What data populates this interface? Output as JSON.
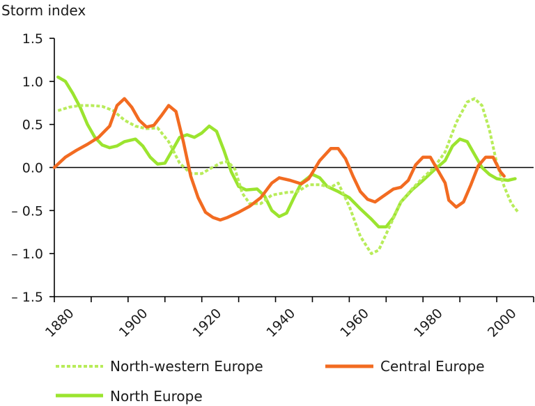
{
  "chart_data": {
    "type": "line",
    "title": "",
    "ylabel": "Storm index",
    "xlabel": "",
    "xlim": [
      1880,
      2010
    ],
    "ylim": [
      -1.5,
      1.5
    ],
    "x_ticks": [
      1880,
      1900,
      1920,
      1940,
      1960,
      1980,
      2000
    ],
    "x_tick_labels": [
      "1880",
      "1900",
      "1920",
      "1940",
      "1960",
      "1980",
      "2000"
    ],
    "y_ticks": [
      1.5,
      1.0,
      0.5,
      0.0,
      -0.5,
      -1.0,
      -1.5
    ],
    "y_tick_labels": [
      "1.5",
      "1.0",
      "0.5",
      "0.0",
      "– 0.5",
      "– 1.0",
      "– 1.5"
    ],
    "grid": false,
    "legend_position": "bottom",
    "series": [
      {
        "name": "North-western Europe",
        "color": "#b8ec5a",
        "style": "dashed",
        "points": [
          [
            1881,
            0.66
          ],
          [
            1884,
            0.7
          ],
          [
            1887,
            0.72
          ],
          [
            1890,
            0.72
          ],
          [
            1893,
            0.71
          ],
          [
            1896,
            0.66
          ],
          [
            1899,
            0.55
          ],
          [
            1902,
            0.48
          ],
          [
            1905,
            0.45
          ],
          [
            1908,
            0.46
          ],
          [
            1911,
            0.3
          ],
          [
            1914,
            0.05
          ],
          [
            1917,
            -0.07
          ],
          [
            1920,
            -0.07
          ],
          [
            1922,
            -0.02
          ],
          [
            1925,
            0.05
          ],
          [
            1927,
            0.07
          ],
          [
            1929,
            -0.02
          ],
          [
            1931,
            -0.3
          ],
          [
            1933,
            -0.42
          ],
          [
            1936,
            -0.42
          ],
          [
            1939,
            -0.32
          ],
          [
            1943,
            -0.29
          ],
          [
            1946,
            -0.28
          ],
          [
            1949,
            -0.2
          ],
          [
            1952,
            -0.2
          ],
          [
            1955,
            -0.23
          ],
          [
            1957,
            -0.18
          ],
          [
            1960,
            -0.45
          ],
          [
            1963,
            -0.8
          ],
          [
            1966,
            -1.0
          ],
          [
            1968,
            -0.96
          ],
          [
            1971,
            -0.68
          ],
          [
            1974,
            -0.4
          ],
          [
            1977,
            -0.25
          ],
          [
            1980,
            -0.12
          ],
          [
            1983,
            0.0
          ],
          [
            1986,
            0.18
          ],
          [
            1989,
            0.52
          ],
          [
            1992,
            0.76
          ],
          [
            1994,
            0.8
          ],
          [
            1996,
            0.72
          ],
          [
            1998,
            0.44
          ],
          [
            2000,
            0.05
          ],
          [
            2002,
            -0.22
          ],
          [
            2004,
            -0.42
          ],
          [
            2006,
            -0.53
          ]
        ]
      },
      {
        "name": "Central Europe",
        "color": "#f26b21",
        "style": "solid",
        "points": [
          [
            1880,
            0.0
          ],
          [
            1883,
            0.12
          ],
          [
            1886,
            0.2
          ],
          [
            1889,
            0.27
          ],
          [
            1892,
            0.35
          ],
          [
            1895,
            0.48
          ],
          [
            1897,
            0.72
          ],
          [
            1899,
            0.8
          ],
          [
            1901,
            0.7
          ],
          [
            1903,
            0.55
          ],
          [
            1905,
            0.47
          ],
          [
            1907,
            0.49
          ],
          [
            1909,
            0.6
          ],
          [
            1911,
            0.72
          ],
          [
            1913,
            0.65
          ],
          [
            1915,
            0.3
          ],
          [
            1917,
            -0.1
          ],
          [
            1919,
            -0.35
          ],
          [
            1921,
            -0.52
          ],
          [
            1923,
            -0.58
          ],
          [
            1925,
            -0.61
          ],
          [
            1927,
            -0.58
          ],
          [
            1930,
            -0.52
          ],
          [
            1933,
            -0.45
          ],
          [
            1936,
            -0.35
          ],
          [
            1939,
            -0.18
          ],
          [
            1941,
            -0.12
          ],
          [
            1944,
            -0.15
          ],
          [
            1947,
            -0.19
          ],
          [
            1949,
            -0.13
          ],
          [
            1952,
            0.08
          ],
          [
            1955,
            0.22
          ],
          [
            1957,
            0.22
          ],
          [
            1959,
            0.1
          ],
          [
            1961,
            -0.1
          ],
          [
            1963,
            -0.28
          ],
          [
            1965,
            -0.37
          ],
          [
            1967,
            -0.4
          ],
          [
            1969,
            -0.34
          ],
          [
            1972,
            -0.25
          ],
          [
            1974,
            -0.23
          ],
          [
            1976,
            -0.15
          ],
          [
            1978,
            0.03
          ],
          [
            1980,
            0.12
          ],
          [
            1982,
            0.12
          ],
          [
            1984,
            -0.03
          ],
          [
            1986,
            -0.18
          ],
          [
            1987,
            -0.38
          ],
          [
            1989,
            -0.46
          ],
          [
            1991,
            -0.4
          ],
          [
            1993,
            -0.2
          ],
          [
            1995,
            0.02
          ],
          [
            1997,
            0.12
          ],
          [
            1999,
            0.12
          ],
          [
            2001,
            -0.05
          ],
          [
            2002,
            -0.1
          ]
        ]
      },
      {
        "name": "North Europe",
        "color": "#9be42f",
        "style": "solid",
        "points": [
          [
            1881,
            1.05
          ],
          [
            1883,
            1.0
          ],
          [
            1885,
            0.86
          ],
          [
            1887,
            0.7
          ],
          [
            1889,
            0.5
          ],
          [
            1891,
            0.35
          ],
          [
            1893,
            0.26
          ],
          [
            1895,
            0.23
          ],
          [
            1897,
            0.25
          ],
          [
            1899,
            0.3
          ],
          [
            1902,
            0.33
          ],
          [
            1904,
            0.25
          ],
          [
            1906,
            0.12
          ],
          [
            1908,
            0.04
          ],
          [
            1910,
            0.05
          ],
          [
            1912,
            0.2
          ],
          [
            1914,
            0.35
          ],
          [
            1916,
            0.38
          ],
          [
            1918,
            0.35
          ],
          [
            1920,
            0.4
          ],
          [
            1922,
            0.48
          ],
          [
            1924,
            0.42
          ],
          [
            1926,
            0.2
          ],
          [
            1928,
            -0.05
          ],
          [
            1930,
            -0.22
          ],
          [
            1932,
            -0.26
          ],
          [
            1935,
            -0.25
          ],
          [
            1937,
            -0.33
          ],
          [
            1939,
            -0.5
          ],
          [
            1941,
            -0.57
          ],
          [
            1943,
            -0.53
          ],
          [
            1945,
            -0.35
          ],
          [
            1947,
            -0.18
          ],
          [
            1950,
            -0.08
          ],
          [
            1952,
            -0.12
          ],
          [
            1954,
            -0.22
          ],
          [
            1957,
            -0.28
          ],
          [
            1960,
            -0.35
          ],
          [
            1963,
            -0.48
          ],
          [
            1966,
            -0.6
          ],
          [
            1968,
            -0.69
          ],
          [
            1970,
            -0.69
          ],
          [
            1972,
            -0.58
          ],
          [
            1974,
            -0.4
          ],
          [
            1977,
            -0.26
          ],
          [
            1980,
            -0.15
          ],
          [
            1983,
            -0.03
          ],
          [
            1986,
            0.08
          ],
          [
            1988,
            0.25
          ],
          [
            1990,
            0.33
          ],
          [
            1992,
            0.3
          ],
          [
            1994,
            0.15
          ],
          [
            1996,
            0.0
          ],
          [
            1998,
            -0.08
          ],
          [
            2000,
            -0.13
          ],
          [
            2003,
            -0.15
          ],
          [
            2005,
            -0.13
          ]
        ]
      }
    ]
  },
  "legend": {
    "items": [
      {
        "name": "North-western Europe"
      },
      {
        "name": "Central Europe"
      },
      {
        "name": "North Europe"
      }
    ]
  }
}
